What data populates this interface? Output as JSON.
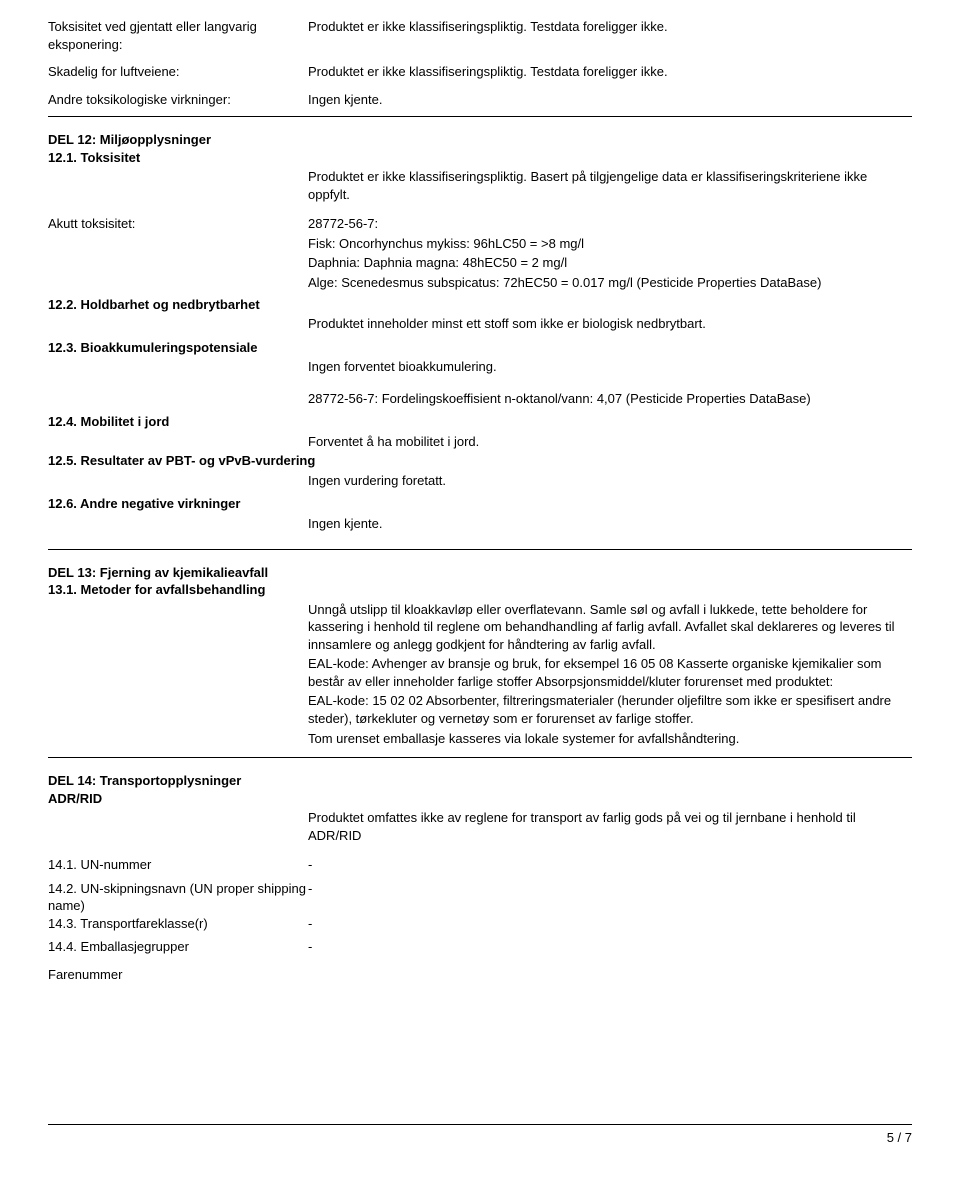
{
  "top": {
    "rows": [
      {
        "label": "Toksisitet ved gjentatt eller langvarig eksponering:",
        "value": "Produktet er ikke klassifiseringspliktig. Testdata foreligger ikke."
      },
      {
        "label": "Skadelig for luftveiene:",
        "value": "Produktet er ikke klassifiseringspliktig. Testdata foreligger ikke."
      },
      {
        "label": "Andre toksikologiske virkninger:",
        "value": "Ingen kjente."
      }
    ]
  },
  "del12": {
    "heading": "DEL 12: Miljøopplysninger",
    "s1_title": "12.1. Toksisitet",
    "s1_text": "Produktet er ikke klassifiseringspliktig. Basert på tilgjengelige data er klassifiseringskriteriene ikke oppfylt.",
    "akutt_label": "Akutt toksisitet:",
    "akutt_lines": [
      "28772-56-7:",
      "Fisk: Oncorhynchus mykiss: 96hLC50 = >8 mg/l",
      "Daphnia: Daphnia magna: 48hEC50 = 2 mg/l",
      "Alge: Scenedesmus subspicatus: 72hEC50 = 0.017 mg/l (Pesticide Properties DataBase)"
    ],
    "s2_title": "12.2. Holdbarhet og nedbrytbarhet",
    "s2_text": "Produktet inneholder minst ett stoff som ikke er biologisk nedbrytbart.",
    "s3_title": "12.3. Bioakkumuleringspotensiale",
    "s3_text1": "Ingen forventet bioakkumulering.",
    "s3_text2": "28772-56-7: Fordelingskoeffisient n-oktanol/vann: 4,07 (Pesticide Properties DataBase)",
    "s4_title": "12.4. Mobilitet i jord",
    "s4_text": "Forventet å ha mobilitet i jord.",
    "s5_title": "12.5. Resultater av PBT- og vPvB-vurdering",
    "s5_text": "Ingen vurdering foretatt.",
    "s6_title": "12.6. Andre negative virkninger",
    "s6_text": "Ingen kjente."
  },
  "del13": {
    "heading": "DEL 13: Fjerning av kjemikalieavfall",
    "s1_title": "13.1. Metoder for avfallsbehandling",
    "paragraphs": [
      "Unngå utslipp til kloakkavløp eller overflatevann.  Samle søl og avfall i lukkede, tette beholdere for kassering i henhold til reglene om behandhandling af farlig avfall. Avfallet skal deklareres og leveres til innsamlere og anlegg godkjent for håndtering av farlig avfall.",
      "EAL-kode: Avhenger av bransje og bruk, for eksempel 16 05 08 Kasserte organiske kjemikalier som består av eller inneholder farlige stoffer   Absorpsjonsmiddel/kluter forurenset med produktet:",
      "EAL-kode: 15 02 02 Absorbenter, filtreringsmaterialer (herunder oljefiltre som ikke er spesifisert andre steder), tørkekluter og vernetøy som er forurenset av farlige stoffer.",
      "Tom urenset emballasje kasseres via lokale systemer for avfallshåndtering."
    ]
  },
  "del14": {
    "heading": "DEL 14: Transportopplysninger",
    "adr_label": "ADR/RID",
    "adr_text": "Produktet omfattes ikke av reglene for transport av farlig gods på vei og til jernbane i henhold til ADR/RID",
    "rows": [
      {
        "label": "14.1. UN-nummer",
        "value": "-"
      },
      {
        "label": "14.2. UN-skipningsnavn (UN proper shipping name)",
        "value": "-"
      },
      {
        "label": "14.3. Transportfareklasse(r)",
        "value": "-"
      },
      {
        "label": "14.4. Emballasjegrupper",
        "value": "-"
      },
      {
        "label": "Farenummer",
        "value": ""
      }
    ]
  },
  "footer": {
    "page": "5 / 7"
  }
}
